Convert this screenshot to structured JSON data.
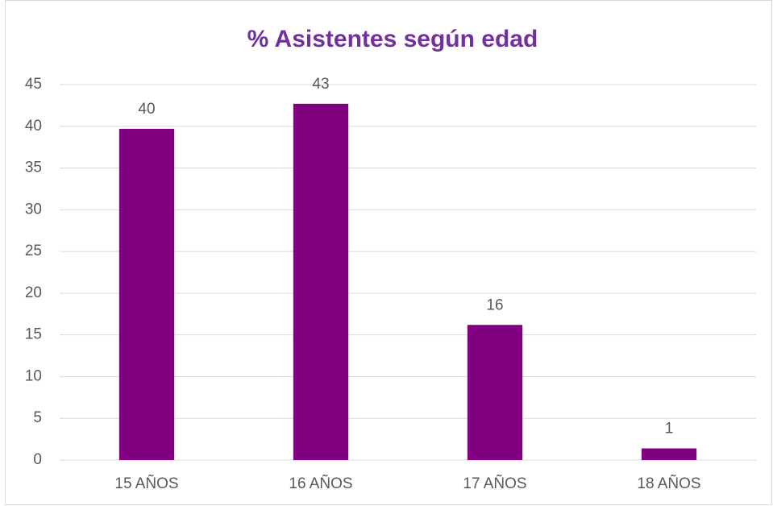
{
  "chart_data": {
    "type": "bar",
    "title": "% Asistentes según edad",
    "categories": [
      "15 AÑOS",
      "16 AÑOS",
      "17 AÑOS",
      "18 AÑOS"
    ],
    "values": [
      39.7,
      42.7,
      16.2,
      1.4
    ],
    "value_labels": [
      "40",
      "43",
      "16",
      "1"
    ],
    "color": "#800080",
    "ylim": [
      0,
      45
    ],
    "yticks": [
      0,
      5,
      10,
      15,
      20,
      25,
      30,
      35,
      40,
      45
    ],
    "grid": true
  }
}
